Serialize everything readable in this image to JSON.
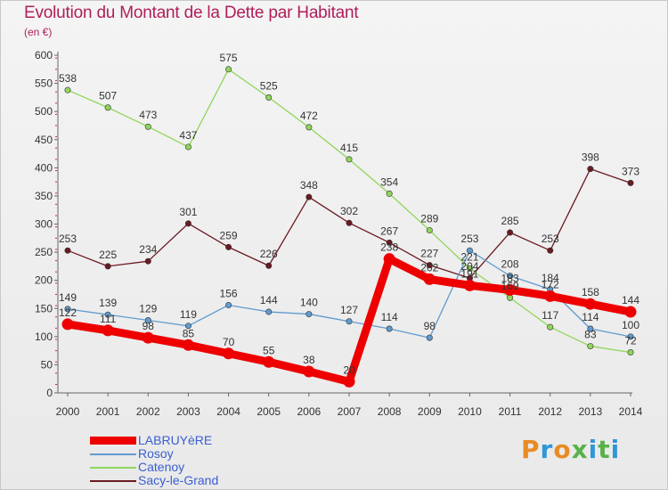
{
  "title": "Evolution du Montant de la Dette par Habitant",
  "subtitle": "(en €)",
  "brand": {
    "text": "Proxiti",
    "colors": [
      "#e98b25",
      "#2f97d6",
      "#e98b25",
      "#58b24a",
      "#2f97d6",
      "#58b24a",
      "#2f97d6"
    ]
  },
  "chart_data": {
    "type": "line",
    "x": [
      "2000",
      "2001",
      "2002",
      "2003",
      "2004",
      "2005",
      "2006",
      "2007",
      "2008",
      "2009",
      "2010",
      "2011",
      "2012",
      "2013",
      "2014"
    ],
    "ylim": [
      0,
      600
    ],
    "yticks": [
      0,
      50,
      100,
      150,
      200,
      250,
      300,
      350,
      400,
      450,
      500,
      550,
      600
    ],
    "grid": false,
    "legend_position": "bottom-left",
    "series": [
      {
        "name": "Sacy-le-Grand",
        "color": "#6b1a22",
        "emphasis": false,
        "values": [
          253,
          225,
          234,
          301,
          259,
          226,
          348,
          302,
          267,
          227,
          204,
          285,
          253,
          398,
          373
        ]
      },
      {
        "name": "Catenoy",
        "color": "#8fd65a",
        "emphasis": false,
        "values": [
          538,
          507,
          473,
          437,
          575,
          525,
          472,
          415,
          354,
          289,
          221,
          169,
          117,
          83,
          72
        ]
      },
      {
        "name": "Rosoy",
        "color": "#5f9bcf",
        "emphasis": false,
        "values": [
          149,
          139,
          129,
          119,
          156,
          144,
          140,
          127,
          114,
          98,
          253,
          208,
          184,
          114,
          100
        ]
      },
      {
        "name": "LABRUYèRE",
        "color": "#ee0000",
        "emphasis": true,
        "values": [
          122,
          111,
          98,
          85,
          70,
          55,
          38,
          20,
          238,
          202,
          191,
          183,
          172,
          158,
          144
        ]
      }
    ]
  }
}
